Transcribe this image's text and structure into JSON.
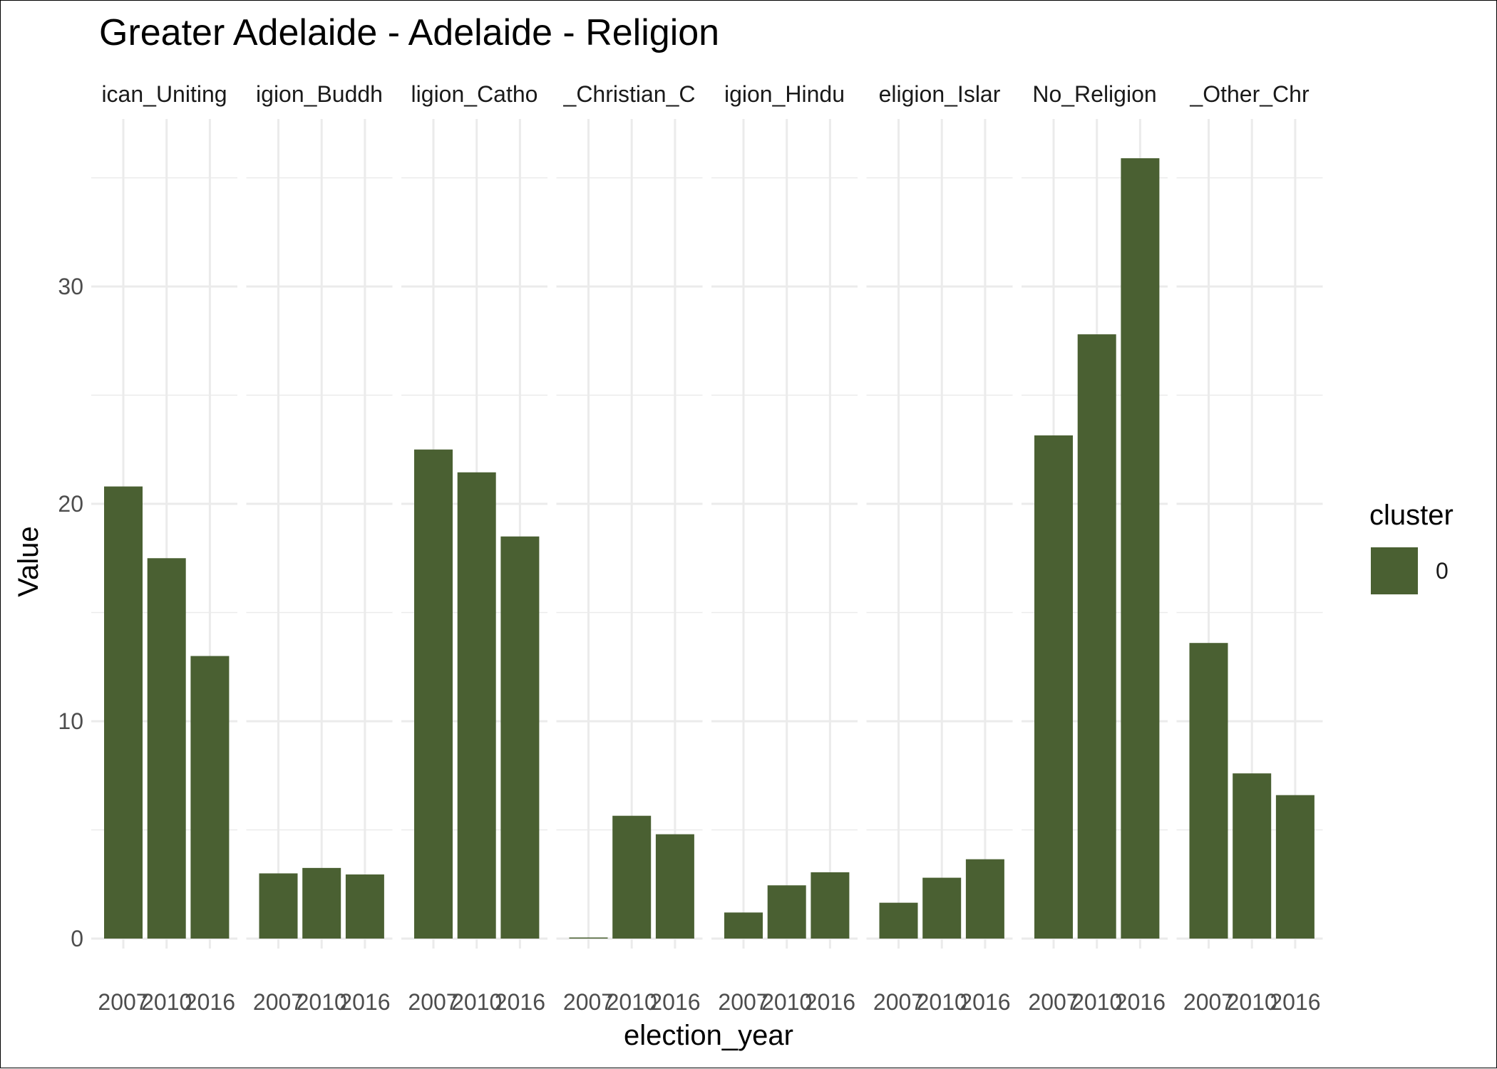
{
  "chart_data": {
    "type": "bar",
    "title": "Greater Adelaide - Adelaide - Religion",
    "xlabel": "election_year",
    "ylabel": "Value",
    "ylim": [
      0,
      37.5
    ],
    "y_ticks": [
      0,
      10,
      20,
      30
    ],
    "grid": true,
    "bar_color": "#4a6032",
    "x": [
      "2007",
      "2010",
      "2016"
    ],
    "facets": [
      {
        "label": "ican_Uniting",
        "values": [
          20.8,
          17.5,
          13.0
        ]
      },
      {
        "label": "igion_Buddh",
        "values": [
          3.0,
          3.25,
          2.95
        ]
      },
      {
        "label": "ligion_Catho",
        "values": [
          22.5,
          21.45,
          18.5
        ]
      },
      {
        "label": "_Christian_C",
        "values": [
          0.05,
          5.65,
          4.8
        ]
      },
      {
        "label": "igion_Hindu",
        "values": [
          1.2,
          2.45,
          3.05
        ]
      },
      {
        "label": "eligion_Islar",
        "values": [
          1.65,
          2.8,
          3.65
        ]
      },
      {
        "label": "No_Religion",
        "values": [
          23.15,
          27.8,
          35.9
        ]
      },
      {
        "label": "_Other_Chr",
        "values": [
          13.6,
          7.6,
          6.6
        ]
      }
    ],
    "legend": {
      "title": "cluster",
      "position": "right",
      "entries": [
        {
          "label": "0",
          "color": "#4a6032"
        }
      ]
    }
  }
}
